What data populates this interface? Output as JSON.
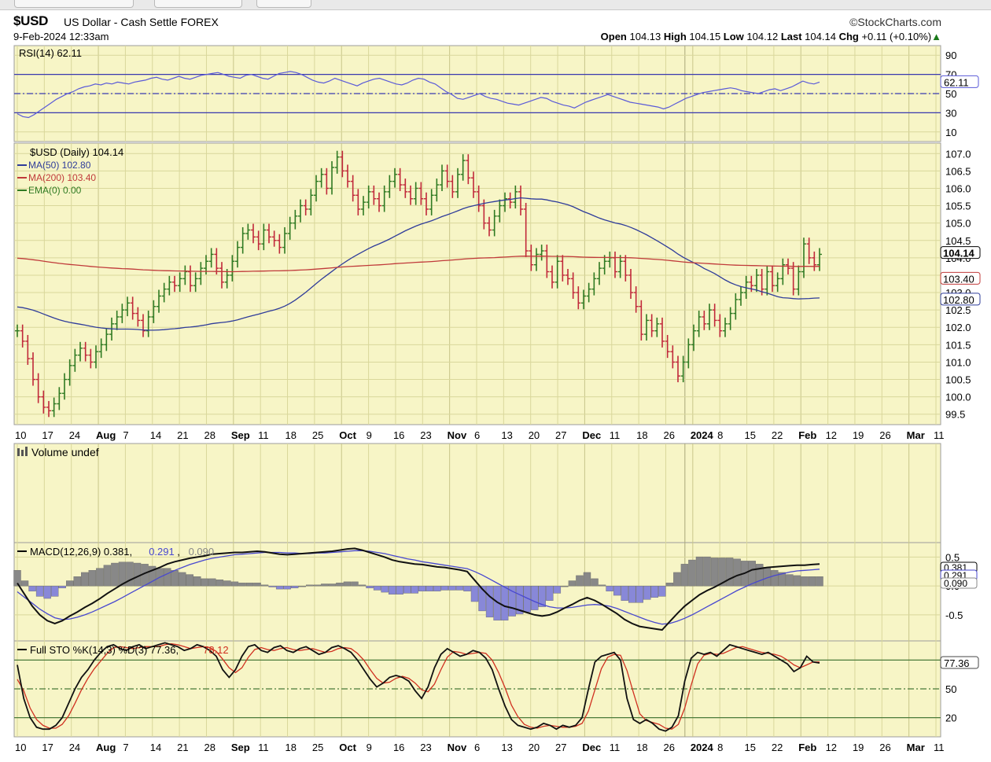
{
  "header": {
    "symbol": "$USD",
    "description": "US Dollar - Cash Settle FOREX",
    "datetime": "9-Feb-2024 12:33am",
    "brand": "©StockCharts.com",
    "ohlc": {
      "open_label": "Open",
      "open": "104.13",
      "high_label": "High",
      "high": "104.15",
      "low_label": "Low",
      "low": "104.12",
      "last_label": "Last",
      "last": "104.14",
      "chg_label": "Chg",
      "chg": "+0.11 (+0.10%)",
      "chg_arrow": "▲"
    }
  },
  "colors": {
    "panel_bg": "#f7f5c6",
    "grid": "#d9d79b",
    "up_bar": "#2f7a22",
    "down_bar": "#c0283a",
    "ma50": "#2f3c9a",
    "ma200": "#c03a3a",
    "rsi": "#5a5ad8",
    "macd": "#111111",
    "signal": "#4848d0",
    "hist_pos": "#888888",
    "hist_neg": "#8888d8",
    "sto_k": "#111111",
    "sto_d": "#d03020"
  },
  "x_axis": {
    "labels": [
      {
        "text": "10",
        "bold": false
      },
      {
        "text": "17",
        "bold": false
      },
      {
        "text": "24",
        "bold": false
      },
      {
        "text": "Aug",
        "bold": true
      },
      {
        "text": "7",
        "bold": false
      },
      {
        "text": "14",
        "bold": false
      },
      {
        "text": "21",
        "bold": false
      },
      {
        "text": "28",
        "bold": false
      },
      {
        "text": "Sep",
        "bold": true
      },
      {
        "text": "11",
        "bold": false
      },
      {
        "text": "18",
        "bold": false
      },
      {
        "text": "25",
        "bold": false
      },
      {
        "text": "Oct",
        "bold": true
      },
      {
        "text": "9",
        "bold": false
      },
      {
        "text": "16",
        "bold": false
      },
      {
        "text": "23",
        "bold": false
      },
      {
        "text": "Nov",
        "bold": true
      },
      {
        "text": "6",
        "bold": false
      },
      {
        "text": "13",
        "bold": false
      },
      {
        "text": "20",
        "bold": false
      },
      {
        "text": "27",
        "bold": false
      },
      {
        "text": "Dec",
        "bold": true
      },
      {
        "text": "11",
        "bold": false
      },
      {
        "text": "18",
        "bold": false
      },
      {
        "text": "26",
        "bold": false
      },
      {
        "text": "2024",
        "bold": true
      },
      {
        "text": "8",
        "bold": false
      },
      {
        "text": "15",
        "bold": false
      },
      {
        "text": "22",
        "bold": false
      },
      {
        "text": "Feb",
        "bold": true
      },
      {
        "text": "12",
        "bold": false
      },
      {
        "text": "19",
        "bold": false
      },
      {
        "text": "26",
        "bold": false
      },
      {
        "text": "Mar",
        "bold": true
      },
      {
        "text": "11",
        "bold": false
      }
    ]
  },
  "chart_data": [
    {
      "type": "line",
      "name": "rsi_panel",
      "legend": "RSI(14) 62.11",
      "y_ticks": [
        "90",
        "70",
        "50",
        "30",
        "10"
      ],
      "ylim": [
        0,
        100
      ],
      "levels": [
        70,
        50,
        30
      ],
      "last_value_label": "62.11",
      "series": [
        {
          "name": "RSI(14)",
          "values": [
            29,
            26,
            25,
            28,
            32,
            36,
            40,
            44,
            47,
            50,
            52,
            55,
            57,
            58,
            60,
            59,
            61,
            60,
            62,
            61,
            60,
            62,
            63,
            64,
            66,
            67,
            65,
            64,
            66,
            68,
            66,
            65,
            67,
            69,
            70,
            71,
            72,
            70,
            68,
            67,
            66,
            69,
            70,
            68,
            66,
            65,
            68,
            71,
            72,
            73,
            72,
            70,
            67,
            64,
            62,
            61,
            63,
            66,
            64,
            62,
            60,
            58,
            61,
            63,
            65,
            66,
            64,
            62,
            60,
            59,
            61,
            64,
            66,
            65,
            62,
            60,
            56,
            52,
            49,
            45,
            44,
            46,
            48,
            50,
            47,
            45,
            44,
            42,
            40,
            39,
            38,
            40,
            42,
            44,
            46,
            45,
            42,
            40,
            38,
            37,
            35,
            38,
            41,
            43,
            45,
            47,
            49,
            47,
            45,
            43,
            41,
            40,
            39,
            38,
            37,
            36,
            34,
            36,
            39,
            42,
            45,
            47,
            49,
            51,
            52,
            53,
            54,
            55,
            56,
            55,
            53,
            52,
            51,
            50,
            52,
            54,
            55,
            53,
            55,
            57,
            60,
            63,
            61,
            60,
            62
          ]
        }
      ]
    },
    {
      "type": "bar",
      "name": "price_panel",
      "legend": [
        {
          "text": "$USD (Daily) 104.14",
          "color": "#000000"
        },
        {
          "text": "MA(50) 102.80",
          "color": "#2f3c9a"
        },
        {
          "text": "MA(200) 103.40",
          "color": "#c03a3a"
        },
        {
          "text": "EMA(0) 0.00",
          "color": "#2f7a22"
        }
      ],
      "y_ticks": [
        "107.0",
        "106.5",
        "106.0",
        "105.5",
        "105.0",
        "104.5",
        "104.0",
        "103.5",
        "103.0",
        "102.5",
        "102.0",
        "101.5",
        "101.0",
        "100.5",
        "100.0",
        "99.5"
      ],
      "ylim": [
        99.2,
        107.3
      ],
      "last_labels": [
        "104.14",
        "103.40",
        "102.80"
      ],
      "closes": [
        101.9,
        101.6,
        101.1,
        100.5,
        100.0,
        99.7,
        99.6,
        99.8,
        100.1,
        100.5,
        100.9,
        101.2,
        101.4,
        101.2,
        101.0,
        101.3,
        101.5,
        101.8,
        102.1,
        102.3,
        102.5,
        102.7,
        102.4,
        102.2,
        101.9,
        102.3,
        102.6,
        102.9,
        103.1,
        103.3,
        103.2,
        103.4,
        103.6,
        103.2,
        103.4,
        103.7,
        103.9,
        104.1,
        103.7,
        103.3,
        103.5,
        103.9,
        104.3,
        104.7,
        104.8,
        104.6,
        104.4,
        104.8,
        104.6,
        104.5,
        104.3,
        104.7,
        105.0,
        105.2,
        105.5,
        105.4,
        105.8,
        106.2,
        106.4,
        106.0,
        106.6,
        106.9,
        106.5,
        106.2,
        105.8,
        105.4,
        105.6,
        105.9,
        105.7,
        105.5,
        105.9,
        106.2,
        106.4,
        106.1,
        105.9,
        105.7,
        106.0,
        105.7,
        105.4,
        105.8,
        106.1,
        106.5,
        106.2,
        105.9,
        106.4,
        106.8,
        106.3,
        105.9,
        105.5,
        105.0,
        104.8,
        105.2,
        105.5,
        105.7,
        105.6,
        105.9,
        105.4,
        104.2,
        103.8,
        104.1,
        104.2,
        103.6,
        103.3,
        103.9,
        103.5,
        103.4,
        103.0,
        102.7,
        102.9,
        103.1,
        103.4,
        103.7,
        103.9,
        104.0,
        103.6,
        103.9,
        103.5,
        103.0,
        102.6,
        101.8,
        102.2,
        101.9,
        102.1,
        101.6,
        101.3,
        101.0,
        100.6,
        101.0,
        101.5,
        101.9,
        102.3,
        102.1,
        102.5,
        102.2,
        101.9,
        102.1,
        102.4,
        102.8,
        103.0,
        103.3,
        103.2,
        103.5,
        103.1,
        103.6,
        103.2,
        103.4,
        103.8,
        103.7,
        103.1,
        103.6,
        104.4,
        104.0,
        103.8,
        104.1
      ]
    },
    {
      "type": "bar",
      "name": "volume_panel",
      "legend": "Volume undef",
      "values": []
    },
    {
      "type": "line",
      "name": "macd_panel",
      "legend": "MACD(12,26,9) 0.381, 0.291, 0.090",
      "legend_parts": [
        {
          "text": "MACD(12,26,9) 0.381, ",
          "color": "#000000"
        },
        {
          "text": "0.291",
          "color": "#4848d0"
        },
        {
          "text": ", ",
          "color": "#000000"
        },
        {
          "text": "0.090",
          "color": "#888888"
        }
      ],
      "y_ticks": [
        "0.5",
        "0.0",
        "-0.5"
      ],
      "ylim": [
        -0.95,
        0.75
      ],
      "last_labels": [
        "0.381",
        "0.291",
        "0.090"
      ],
      "series": [
        {
          "name": "MACD",
          "values": [
            0.05,
            -0.15,
            -0.35,
            -0.5,
            -0.6,
            -0.65,
            -0.6,
            -0.52,
            -0.45,
            -0.37,
            -0.3,
            -0.22,
            -0.13,
            -0.05,
            0.03,
            0.1,
            0.16,
            0.22,
            0.27,
            0.32,
            0.38,
            0.42,
            0.45,
            0.48,
            0.5,
            0.52,
            0.55,
            0.56,
            0.57,
            0.58,
            0.58,
            0.59,
            0.6,
            0.59,
            0.57,
            0.55,
            0.54,
            0.55,
            0.56,
            0.57,
            0.58,
            0.59,
            0.6,
            0.62,
            0.64,
            0.65,
            0.62,
            0.58,
            0.54,
            0.5,
            0.45,
            0.42,
            0.4,
            0.38,
            0.37,
            0.35,
            0.33,
            0.32,
            0.3,
            0.28,
            0.25,
            0.1,
            -0.05,
            -0.18,
            -0.28,
            -0.35,
            -0.38,
            -0.42,
            -0.46,
            -0.5,
            -0.52,
            -0.5,
            -0.45,
            -0.38,
            -0.32,
            -0.25,
            -0.2,
            -0.25,
            -0.32,
            -0.4,
            -0.48,
            -0.58,
            -0.65,
            -0.7,
            -0.72,
            -0.74,
            -0.76,
            -0.62,
            -0.48,
            -0.35,
            -0.25,
            -0.15,
            -0.08,
            -0.02,
            0.05,
            0.12,
            0.18,
            0.22,
            0.28,
            0.3,
            0.32,
            0.33,
            0.34,
            0.35,
            0.36,
            0.36,
            0.37,
            0.38
          ]
        },
        {
          "name": "Signal",
          "values": [
            -0.1,
            -0.2,
            -0.3,
            -0.4,
            -0.48,
            -0.55,
            -0.58,
            -0.57,
            -0.54,
            -0.5,
            -0.45,
            -0.39,
            -0.33,
            -0.27,
            -0.2,
            -0.13,
            -0.06,
            0.01,
            0.08,
            0.15,
            0.21,
            0.27,
            0.32,
            0.37,
            0.41,
            0.45,
            0.48,
            0.5,
            0.52,
            0.54,
            0.55,
            0.56,
            0.57,
            0.58,
            0.58,
            0.58,
            0.57,
            0.57,
            0.56,
            0.56,
            0.57,
            0.57,
            0.58,
            0.59,
            0.6,
            0.61,
            0.61,
            0.6,
            0.58,
            0.56,
            0.53,
            0.5,
            0.47,
            0.45,
            0.42,
            0.4,
            0.38,
            0.36,
            0.34,
            0.32,
            0.3,
            0.25,
            0.19,
            0.12,
            0.05,
            -0.02,
            -0.09,
            -0.15,
            -0.21,
            -0.27,
            -0.32,
            -0.36,
            -0.38,
            -0.38,
            -0.37,
            -0.35,
            -0.33,
            -0.32,
            -0.33,
            -0.35,
            -0.39,
            -0.44,
            -0.49,
            -0.54,
            -0.59,
            -0.63,
            -0.66,
            -0.65,
            -0.61,
            -0.56,
            -0.5,
            -0.43,
            -0.36,
            -0.29,
            -0.22,
            -0.15,
            -0.08,
            -0.02,
            0.04,
            0.09,
            0.14,
            0.18,
            0.21,
            0.24,
            0.26,
            0.27,
            0.28,
            0.29
          ]
        }
      ]
    },
    {
      "type": "line",
      "name": "sto_panel",
      "legend_parts": [
        {
          "text": "Full STO %K(14,3) %D(3) 77.36, ",
          "color": "#000000"
        },
        {
          "text": "78.12",
          "color": "#d03020"
        }
      ],
      "y_ticks": [
        "80",
        "50",
        "20"
      ],
      "ylim": [
        0,
        100
      ],
      "levels": [
        80,
        50,
        20
      ],
      "last_value_label": "77.36",
      "series": [
        {
          "name": "%K",
          "values": [
            75,
            40,
            20,
            10,
            8,
            8,
            12,
            20,
            35,
            50,
            62,
            70,
            80,
            88,
            94,
            96,
            92,
            90,
            94,
            96,
            92,
            94,
            96,
            98,
            96,
            94,
            90,
            92,
            96,
            94,
            90,
            84,
            70,
            62,
            70,
            84,
            94,
            96,
            90,
            88,
            93,
            95,
            90,
            88,
            92,
            94,
            90,
            86,
            88,
            93,
            95,
            92,
            88,
            80,
            70,
            60,
            52,
            56,
            62,
            64,
            62,
            58,
            48,
            40,
            52,
            72,
            86,
            92,
            88,
            84,
            86,
            90,
            88,
            82,
            70,
            50,
            32,
            18,
            12,
            10,
            8,
            10,
            14,
            12,
            8,
            12,
            10,
            12,
            20,
            50,
            78,
            84,
            86,
            88,
            80,
            40,
            18,
            14,
            18,
            14,
            8,
            6,
            10,
            22,
            58,
            82,
            88,
            86,
            88,
            84,
            90,
            96,
            94,
            92,
            90,
            88,
            86,
            88,
            84,
            80,
            76,
            68,
            72,
            84,
            78,
            77
          ]
        },
        {
          "name": "%D",
          "values": [
            60,
            48,
            30,
            18,
            12,
            9,
            9,
            13,
            22,
            35,
            49,
            61,
            71,
            79,
            87,
            93,
            94,
            93,
            92,
            93,
            94,
            94,
            94,
            96,
            97,
            96,
            94,
            92,
            93,
            94,
            93,
            89,
            81,
            72,
            67,
            72,
            83,
            91,
            93,
            91,
            90,
            92,
            93,
            91,
            90,
            91,
            92,
            90,
            88,
            89,
            92,
            93,
            92,
            87,
            80,
            70,
            61,
            56,
            57,
            61,
            63,
            61,
            56,
            49,
            47,
            55,
            70,
            83,
            89,
            88,
            86,
            87,
            88,
            87,
            80,
            67,
            51,
            33,
            21,
            13,
            10,
            9,
            11,
            12,
            11,
            10,
            10,
            11,
            14,
            27,
            49,
            71,
            83,
            86,
            85,
            69,
            46,
            24,
            17,
            15,
            13,
            9,
            8,
            13,
            30,
            54,
            76,
            85,
            87,
            86,
            87,
            90,
            93,
            94,
            92,
            90,
            88,
            87,
            86,
            84,
            80,
            75,
            72,
            75,
            78,
            78
          ]
        }
      ]
    }
  ]
}
